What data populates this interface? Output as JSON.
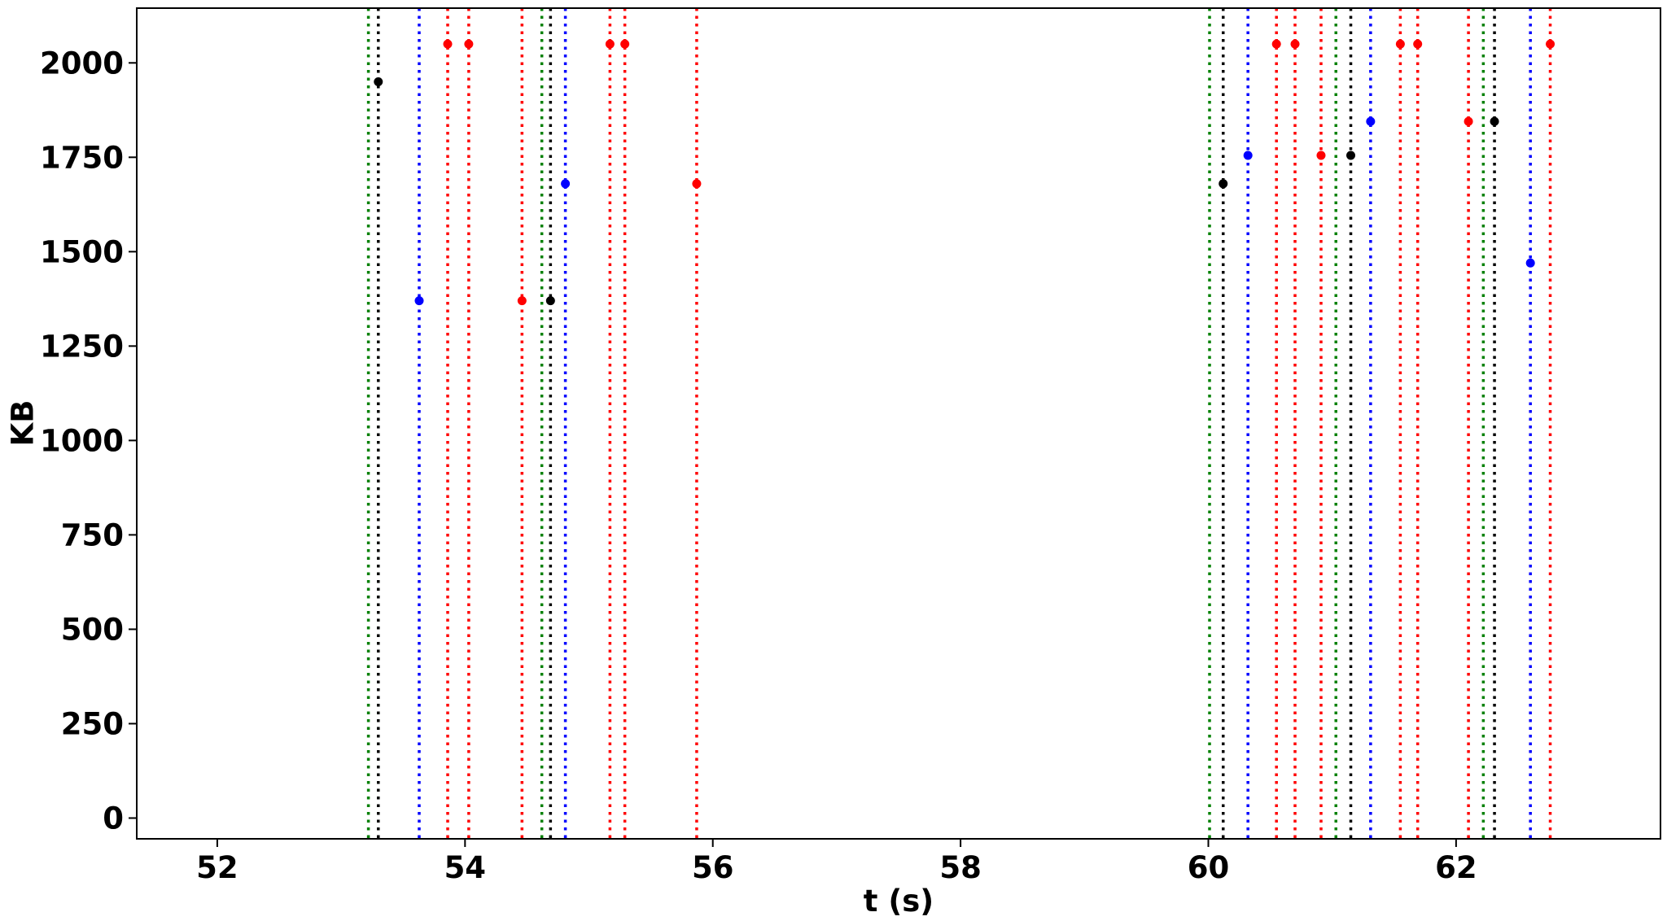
{
  "chart_data": {
    "type": "scatter",
    "title": "",
    "xlabel": "t (s)",
    "ylabel": "KB",
    "xlim": [
      51.35,
      63.65
    ],
    "ylim": [
      -55,
      2145
    ],
    "xticks": [
      52,
      54,
      56,
      58,
      60,
      62
    ],
    "yticks": [
      0,
      250,
      500,
      750,
      1000,
      1250,
      1500,
      1750,
      2000
    ],
    "grid": false,
    "legend": "none",
    "line_style": "dotted",
    "colors": {
      "green": "#008000",
      "black": "#000000",
      "blue": "#0000ff",
      "red": "#ff0000"
    },
    "vertical_lines": [
      {
        "x": 53.22,
        "color": "green"
      },
      {
        "x": 53.3,
        "color": "black"
      },
      {
        "x": 53.63,
        "color": "blue"
      },
      {
        "x": 53.86,
        "color": "red"
      },
      {
        "x": 54.03,
        "color": "red"
      },
      {
        "x": 54.46,
        "color": "red"
      },
      {
        "x": 54.62,
        "color": "green"
      },
      {
        "x": 54.69,
        "color": "black"
      },
      {
        "x": 54.81,
        "color": "blue"
      },
      {
        "x": 55.17,
        "color": "red"
      },
      {
        "x": 55.29,
        "color": "red"
      },
      {
        "x": 55.87,
        "color": "red"
      },
      {
        "x": 60.01,
        "color": "green"
      },
      {
        "x": 60.12,
        "color": "black"
      },
      {
        "x": 60.32,
        "color": "blue"
      },
      {
        "x": 60.55,
        "color": "red"
      },
      {
        "x": 60.7,
        "color": "red"
      },
      {
        "x": 60.91,
        "color": "red"
      },
      {
        "x": 61.03,
        "color": "green"
      },
      {
        "x": 61.15,
        "color": "black"
      },
      {
        "x": 61.31,
        "color": "blue"
      },
      {
        "x": 61.55,
        "color": "red"
      },
      {
        "x": 61.69,
        "color": "red"
      },
      {
        "x": 62.1,
        "color": "red"
      },
      {
        "x": 62.22,
        "color": "green"
      },
      {
        "x": 62.31,
        "color": "black"
      },
      {
        "x": 62.6,
        "color": "blue"
      },
      {
        "x": 62.76,
        "color": "red"
      }
    ],
    "points": [
      {
        "x": 53.3,
        "y": 1950,
        "color": "black"
      },
      {
        "x": 53.63,
        "y": 1370,
        "color": "blue"
      },
      {
        "x": 53.86,
        "y": 2050,
        "color": "red"
      },
      {
        "x": 54.03,
        "y": 2050,
        "color": "red"
      },
      {
        "x": 54.46,
        "y": 1370,
        "color": "red"
      },
      {
        "x": 54.69,
        "y": 1370,
        "color": "black"
      },
      {
        "x": 54.81,
        "y": 1680,
        "color": "blue"
      },
      {
        "x": 55.17,
        "y": 2050,
        "color": "red"
      },
      {
        "x": 55.29,
        "y": 2050,
        "color": "red"
      },
      {
        "x": 55.87,
        "y": 1680,
        "color": "red"
      },
      {
        "x": 60.12,
        "y": 1680,
        "color": "black"
      },
      {
        "x": 60.32,
        "y": 1755,
        "color": "blue"
      },
      {
        "x": 60.55,
        "y": 2050,
        "color": "red"
      },
      {
        "x": 60.7,
        "y": 2050,
        "color": "red"
      },
      {
        "x": 60.91,
        "y": 1755,
        "color": "red"
      },
      {
        "x": 61.15,
        "y": 1755,
        "color": "black"
      },
      {
        "x": 61.31,
        "y": 1845,
        "color": "blue"
      },
      {
        "x": 61.55,
        "y": 2050,
        "color": "red"
      },
      {
        "x": 61.69,
        "y": 2050,
        "color": "red"
      },
      {
        "x": 62.1,
        "y": 1845,
        "color": "red"
      },
      {
        "x": 62.31,
        "y": 1845,
        "color": "black"
      },
      {
        "x": 62.6,
        "y": 1470,
        "color": "blue"
      },
      {
        "x": 62.76,
        "y": 2050,
        "color": "red"
      }
    ]
  }
}
